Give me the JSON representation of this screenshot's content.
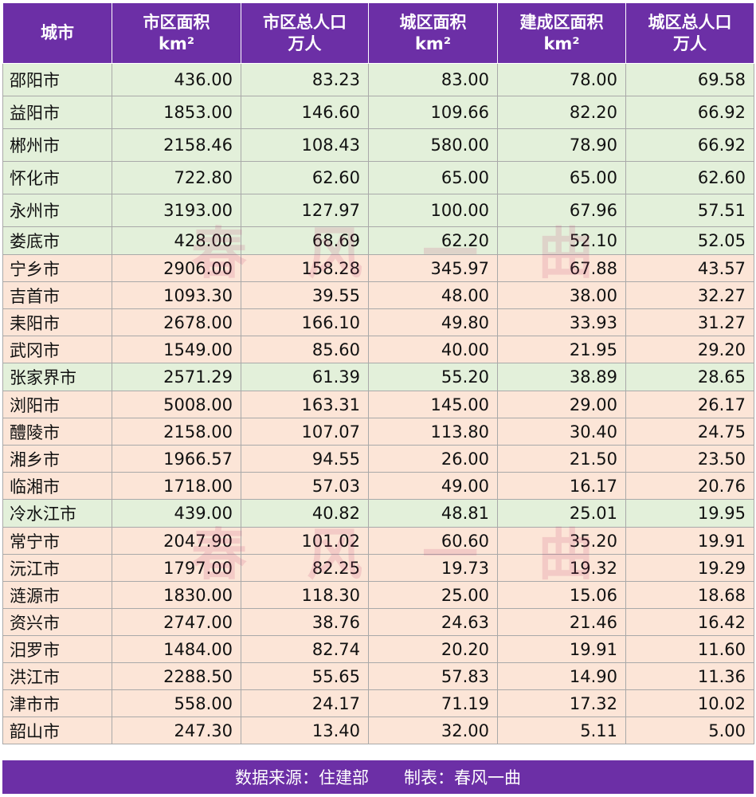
{
  "headers": [
    {
      "l1": "城市",
      "l2": ""
    },
    {
      "l1": "市区面积",
      "l2": "km²"
    },
    {
      "l1": "市区总人口",
      "l2": "万人"
    },
    {
      "l1": "城区面积",
      "l2": "km²"
    },
    {
      "l1": "建成区面积",
      "l2": "km²"
    },
    {
      "l1": "城区总人口",
      "l2": "万人"
    }
  ],
  "rows": [
    {
      "city": "邵阳市",
      "v": [
        "436.00",
        "83.23",
        "83.00",
        "78.00",
        "69.58"
      ],
      "tone": "green"
    },
    {
      "city": "益阳市",
      "v": [
        "1853.00",
        "146.60",
        "109.66",
        "82.20",
        "66.92"
      ],
      "tone": "green"
    },
    {
      "city": "郴州市",
      "v": [
        "2158.46",
        "108.43",
        "580.00",
        "78.90",
        "66.92"
      ],
      "tone": "green"
    },
    {
      "city": "怀化市",
      "v": [
        "722.80",
        "62.60",
        "65.00",
        "65.00",
        "62.60"
      ],
      "tone": "green"
    },
    {
      "city": "永州市",
      "v": [
        "3193.00",
        "127.97",
        "100.00",
        "67.96",
        "57.51"
      ],
      "tone": "green"
    },
    {
      "city": "娄底市",
      "v": [
        "428.00",
        "68.69",
        "62.20",
        "52.10",
        "52.05"
      ],
      "tone": "green-tight"
    },
    {
      "city": "宁乡市",
      "v": [
        "2906.00",
        "158.28",
        "345.97",
        "67.88",
        "43.57"
      ],
      "tone": "pink"
    },
    {
      "city": "吉首市",
      "v": [
        "1093.30",
        "39.55",
        "48.00",
        "38.00",
        "32.27"
      ],
      "tone": "pink"
    },
    {
      "city": "耒阳市",
      "v": [
        "2678.00",
        "166.10",
        "49.80",
        "33.93",
        "31.27"
      ],
      "tone": "pink"
    },
    {
      "city": "武冈市",
      "v": [
        "1549.00",
        "85.60",
        "40.00",
        "21.95",
        "29.20"
      ],
      "tone": "pink"
    },
    {
      "city": "张家界市",
      "v": [
        "2571.29",
        "61.39",
        "55.20",
        "38.89",
        "28.65"
      ],
      "tone": "green-tight"
    },
    {
      "city": "浏阳市",
      "v": [
        "5008.00",
        "163.31",
        "145.00",
        "29.00",
        "26.17"
      ],
      "tone": "pink"
    },
    {
      "city": "醴陵市",
      "v": [
        "2158.00",
        "107.07",
        "113.80",
        "30.40",
        "24.75"
      ],
      "tone": "pink"
    },
    {
      "city": "湘乡市",
      "v": [
        "1966.57",
        "94.55",
        "26.00",
        "21.50",
        "23.50"
      ],
      "tone": "pink"
    },
    {
      "city": "临湘市",
      "v": [
        "1718.00",
        "57.03",
        "49.00",
        "16.17",
        "20.76"
      ],
      "tone": "pink"
    },
    {
      "city": "冷水江市",
      "v": [
        "439.00",
        "40.82",
        "48.81",
        "25.01",
        "19.95"
      ],
      "tone": "green-tight"
    },
    {
      "city": "常宁市",
      "v": [
        "2047.90",
        "101.02",
        "60.60",
        "35.20",
        "19.91"
      ],
      "tone": "pink"
    },
    {
      "city": "沅江市",
      "v": [
        "1797.00",
        "82.25",
        "19.73",
        "19.32",
        "19.29"
      ],
      "tone": "pink"
    },
    {
      "city": "涟源市",
      "v": [
        "1830.00",
        "118.30",
        "25.00",
        "15.06",
        "18.68"
      ],
      "tone": "pink"
    },
    {
      "city": "资兴市",
      "v": [
        "2747.00",
        "38.76",
        "24.63",
        "21.46",
        "16.42"
      ],
      "tone": "pink"
    },
    {
      "city": "汨罗市",
      "v": [
        "1484.00",
        "82.74",
        "20.20",
        "19.91",
        "11.60"
      ],
      "tone": "pink"
    },
    {
      "city": "洪江市",
      "v": [
        "2288.50",
        "55.65",
        "57.83",
        "14.90",
        "11.36"
      ],
      "tone": "pink"
    },
    {
      "city": "津市市",
      "v": [
        "558.00",
        "24.17",
        "71.19",
        "17.32",
        "10.02"
      ],
      "tone": "pink"
    },
    {
      "city": "韶山市",
      "v": [
        "247.30",
        "13.40",
        "32.00",
        "5.11",
        "5.00"
      ],
      "tone": "pink"
    }
  ],
  "footer": {
    "source": "数据来源：住建部",
    "author": "制表：春风一曲"
  },
  "watermark": [
    "春",
    "风",
    "一",
    "曲"
  ],
  "colors": {
    "header_bg": "#6c2fa6",
    "green_row": "#e3f0da",
    "pink_row": "#fce5d7"
  }
}
